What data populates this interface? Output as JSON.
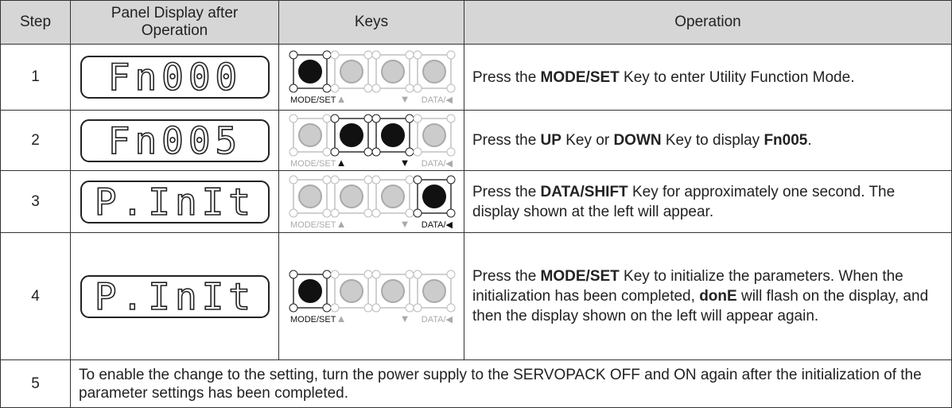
{
  "header": [
    "Step",
    "Panel Display after Operation",
    "Keys",
    "Operation"
  ],
  "key_labels": [
    "MODE/SET",
    "▲",
    "▼",
    "DATA/◀"
  ],
  "rows": [
    {
      "step": "1",
      "display": "Fn000",
      "active_keys": [
        0
      ],
      "operation": [
        {
          "text": "Press the "
        },
        {
          "text": "MODE/SET",
          "bold": true
        },
        {
          "text": " Key to enter Utility Function Mode."
        }
      ]
    },
    {
      "step": "2",
      "display": "Fn005",
      "active_keys": [
        1,
        2
      ],
      "operation": [
        {
          "text": "Press the "
        },
        {
          "text": "UP",
          "bold": true
        },
        {
          "text": " Key or "
        },
        {
          "text": "DOWN",
          "bold": true
        },
        {
          "text": " Key to display "
        },
        {
          "text": "Fn005",
          "bold": true
        },
        {
          "text": "."
        }
      ]
    },
    {
      "step": "3",
      "display": "P.InIt",
      "active_keys": [
        3
      ],
      "operation": [
        {
          "text": "Press the "
        },
        {
          "text": "DATA/SHIFT",
          "bold": true
        },
        {
          "text": " Key for approximately one second. The display shown at the left will appear."
        }
      ]
    },
    {
      "step": "4",
      "display": "P.InIt",
      "active_keys": [
        0
      ],
      "operation": [
        {
          "text": "Press the "
        },
        {
          "text": "MODE/SET",
          "bold": true
        },
        {
          "text": " Key to initialize the parameters. When the initialization has been completed, "
        },
        {
          "text": "donE",
          "bold": true
        },
        {
          "text": " will flash on the display, and then the display shown on the left will appear again."
        }
      ]
    }
  ],
  "note": {
    "step": "5",
    "text": "To enable the change to the setting, turn the power supply to the SERVOPACK OFF and ON again after the initialization of the parameter settings has been completed."
  }
}
